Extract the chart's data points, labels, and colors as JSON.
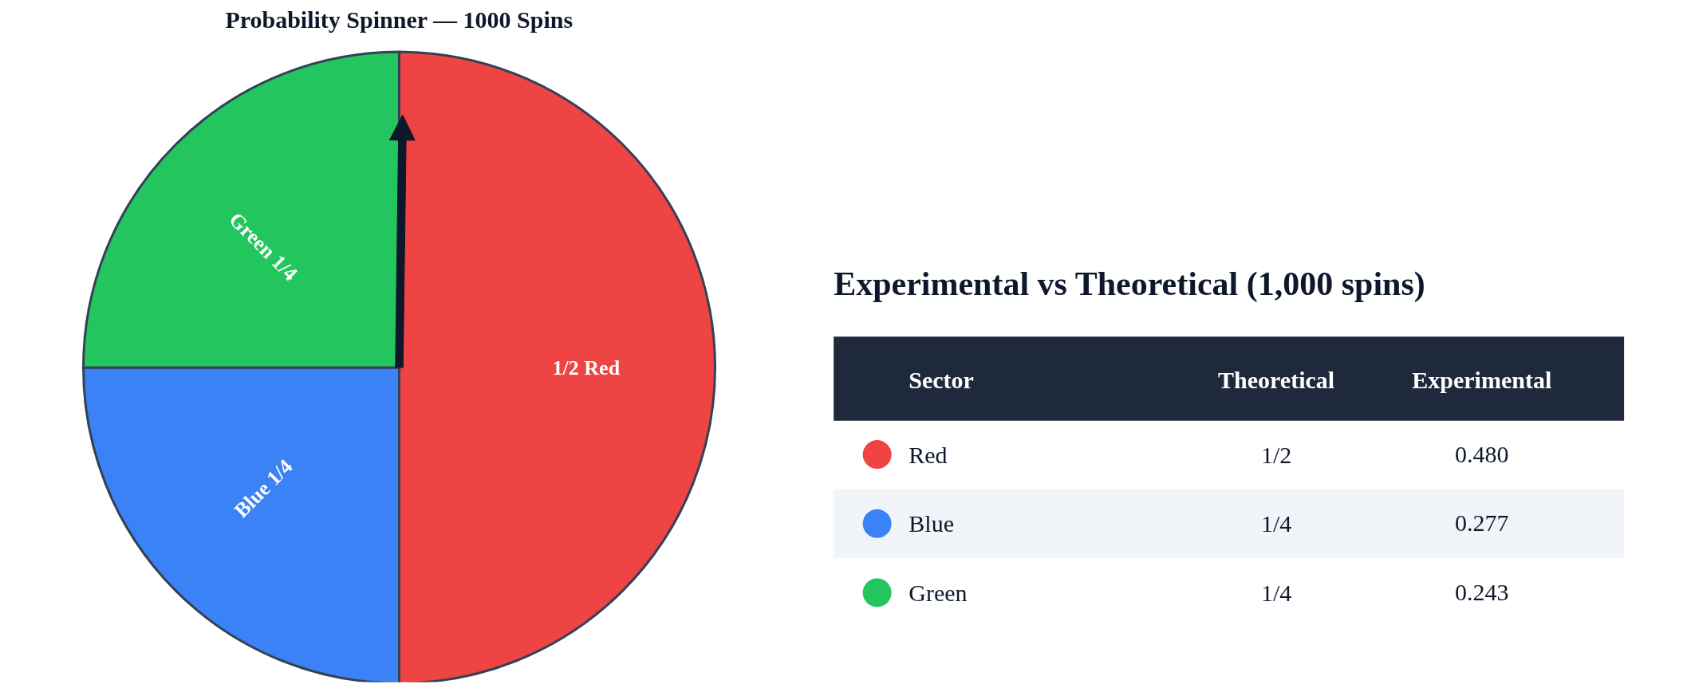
{
  "chart_data": [
    {
      "type": "pie",
      "title": "Probability Spinner — 1000 Spins",
      "categories": [
        "Red",
        "Blue",
        "Green"
      ],
      "values": [
        0.5,
        0.25,
        0.25
      ],
      "colors": [
        "#ef4444",
        "#3b82f6",
        "#22c55e"
      ],
      "value_labels": [
        "1/2",
        "1/4",
        "1/4"
      ],
      "needle": "Red",
      "legend": "right"
    },
    {
      "type": "other",
      "title": "Experimental vs Theoretical (1,000 spins)",
      "xlabel": "Sector",
      "annotations": [
        "Theoretical",
        "Experimental",
        "1/2",
        "0.480",
        "1/4",
        "0.277",
        "1/4",
        "0.243"
      ]
    }
  ]
}
